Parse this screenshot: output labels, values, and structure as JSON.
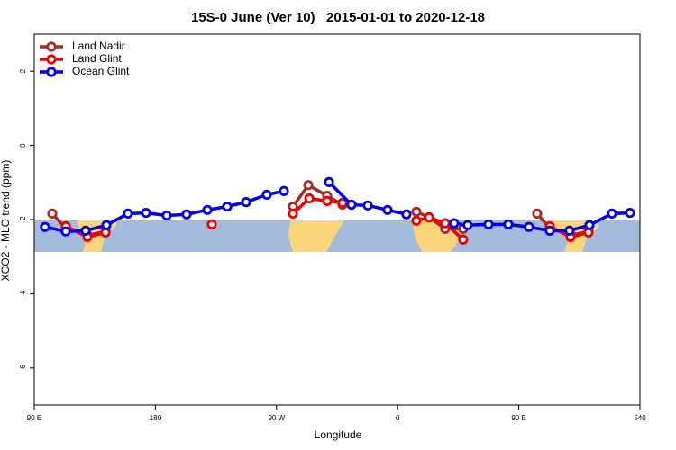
{
  "chart_data": {
    "type": "line",
    "title": "15S-0 June (Ver 10)   2015-01-01 to 2020-12-18",
    "x_label": "Longitude",
    "y_label": "XCO2 - MLO trend (ppm)",
    "xlim": [
      90,
      540
    ],
    "ylim": [
      -7,
      3
    ],
    "xticks": [
      {
        "value": 90,
        "label": "90 E"
      },
      180,
      {
        "value": 270,
        "label": "90 W"
      },
      {
        "value": 360,
        "label": "0"
      },
      {
        "value": 450,
        "label": "90 E"
      },
      540
    ],
    "yticks": [
      2,
      0,
      -2,
      -4,
      -6
    ],
    "legend": "upper left",
    "series": [
      {
        "name": "Land Nadir",
        "color": "#a52a2a",
        "x": [
          103.4,
          113.4,
          129.5,
          142.9,
          null,
          282.2,
          293.6,
          307.6,
          319,
          null,
          373.9,
          383.3,
          395.3,
          408.7,
          null,
          463.6,
          473,
          488.4,
          501.8
        ],
        "values": [
          -1.84,
          -2.23,
          -2.42,
          -2.32,
          null,
          -1.65,
          -1.07,
          -1.36,
          -1.6,
          null,
          -1.79,
          -1.94,
          -2.25,
          -2.25,
          null,
          -1.84,
          -2.23,
          -2.42,
          -2.32
        ]
      },
      {
        "name": "Land Glint",
        "color": "#ee0000",
        "x": [
          113.4,
          129.5,
          142.9,
          null,
          221.9,
          null,
          282.2,
          294.3,
          307.6,
          319,
          null,
          373.9,
          383.3,
          395.3,
          408.7,
          null,
          473,
          488.4,
          501.8
        ],
        "values": [
          -2.18,
          -2.47,
          -2.35,
          null,
          -2.13,
          null,
          -1.84,
          -1.43,
          -1.5,
          -1.55,
          null,
          -2.03,
          -1.94,
          -2.1,
          -2.54,
          null,
          -2.18,
          -2.47,
          -2.35
        ]
      },
      {
        "name": "Ocean Glint",
        "color": "#0000ee",
        "x": [
          98,
          113.4,
          128.2,
          143.6,
          159.6,
          173,
          188.4,
          203.2,
          218.6,
          233.3,
          247.4,
          262.8,
          275.5,
          null,
          309,
          325.7,
          337.8,
          352.5,
          366.5,
          null,
          402,
          412,
          427.5,
          442.2,
          457.6,
          473,
          487.7,
          502.5,
          519.2,
          532.6
        ],
        "values": [
          -2.2,
          -2.32,
          -2.3,
          -2.15,
          -1.84,
          -1.82,
          -1.89,
          -1.86,
          -1.74,
          -1.65,
          -1.53,
          -1.33,
          -1.23,
          null,
          -0.99,
          -1.6,
          -1.62,
          -1.74,
          -1.86,
          null,
          -2.1,
          -2.15,
          -2.13,
          -2.13,
          -2.2,
          -2.3,
          -2.3,
          -2.15,
          -1.84,
          -1.82
        ]
      }
    ]
  }
}
